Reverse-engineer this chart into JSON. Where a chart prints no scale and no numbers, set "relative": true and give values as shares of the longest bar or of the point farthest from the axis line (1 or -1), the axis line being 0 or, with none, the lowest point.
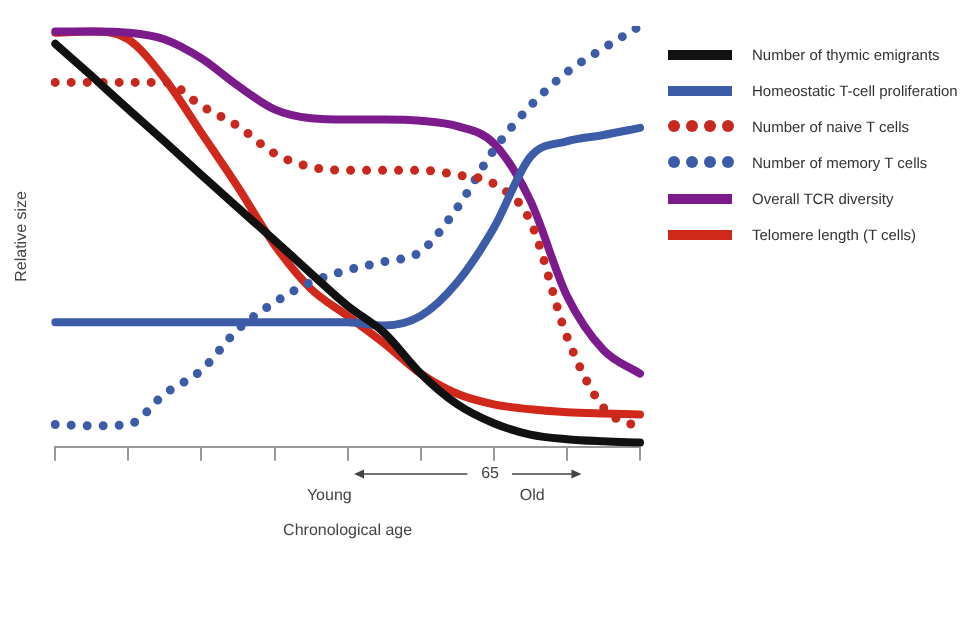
{
  "chart_data": {
    "type": "line",
    "relative": true,
    "ylabel": "Relative size",
    "xlabel": "Chronological age",
    "legend": "right",
    "marker": "none",
    "grid": false,
    "categories": [
      null,
      null,
      null,
      null,
      null,
      null,
      null,
      null,
      null,
      null,
      null,
      null,
      null,
      null,
      null,
      null,
      null
    ],
    "annotations": [
      "Young",
      "65",
      "Old"
    ],
    "series": [
      {
        "name": "Number of thymic emigrants",
        "color": "#111111",
        "line_style": "solid",
        "values": [
          0.958,
          0.881,
          0.802,
          0.725,
          0.646,
          0.568,
          0.491,
          0.412,
          0.335,
          0.271,
          0.174,
          0.101,
          0.056,
          0.029,
          0.018,
          0.013,
          0.01
        ]
      },
      {
        "name": "Homeostatic T-cell proliferation",
        "color": "#3d5ca8",
        "line_style": "solid",
        "values": [
          0.296,
          0.296,
          0.296,
          0.296,
          0.296,
          0.296,
          0.296,
          0.296,
          0.296,
          0.288,
          0.311,
          0.391,
          0.52,
          0.689,
          0.726,
          0.741,
          0.758
        ]
      },
      {
        "name": "Number of naive T cells",
        "color": "#c8281e",
        "line_style": "dotted",
        "values": [
          0.866,
          0.866,
          0.866,
          0.866,
          0.81,
          0.762,
          0.697,
          0.665,
          0.657,
          0.657,
          0.657,
          0.646,
          0.625,
          0.536,
          0.262,
          0.093,
          0.045
        ]
      },
      {
        "name": "Number of memory T cells",
        "color": "#3d5ca8",
        "line_style": "dotted",
        "values": [
          0.053,
          0.05,
          0.053,
          0.126,
          0.182,
          0.279,
          0.343,
          0.391,
          0.42,
          0.44,
          0.464,
          0.568,
          0.705,
          0.81,
          0.89,
          0.947,
          1
        ]
      },
      {
        "name": "Overall TCR diversity",
        "color": "#7b1b8c",
        "line_style": "solid",
        "values": [
          0.987,
          0.987,
          0.984,
          0.968,
          0.923,
          0.858,
          0.802,
          0.781,
          0.778,
          0.778,
          0.775,
          0.762,
          0.721,
          0.585,
          0.359,
          0.23,
          0.174
        ]
      },
      {
        "name": "Telomere length (T cells)",
        "color": "#d0281a",
        "line_style": "solid",
        "values": [
          0.984,
          0.987,
          0.968,
          0.874,
          0.746,
          0.617,
          0.48,
          0.375,
          0.311,
          0.246,
          0.174,
          0.126,
          0.101,
          0.089,
          0.082,
          0.079,
          0.077
        ]
      }
    ]
  }
}
